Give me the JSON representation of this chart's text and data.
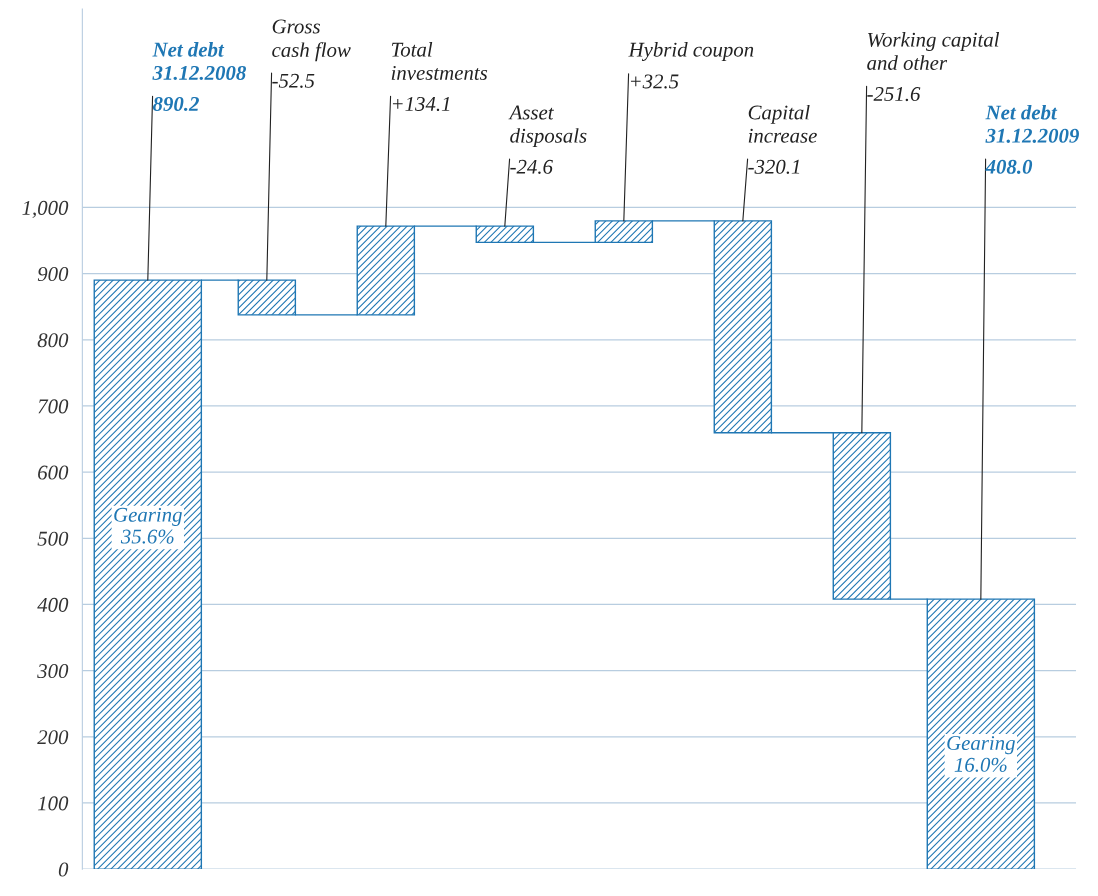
{
  "chart_data": {
    "type": "bar",
    "categories": [
      "Net debt\n31.12.2008",
      "Gross\ncash flow",
      "Total\ninvestments",
      "Asset\ndisposals",
      "Hybrid coupon",
      "Capital\nincrease",
      "Working capital\nand other",
      "Net debt\n31.12.2009"
    ],
    "values": [
      890.2,
      -52.5,
      134.1,
      -24.6,
      32.5,
      -320.1,
      -251.6,
      408.0
    ],
    "base": [
      0,
      890.2,
      837.7,
      971.8,
      947.2,
      979.7,
      659.6,
      0
    ],
    "value_labels": [
      "890.2",
      "-52.5",
      "+134.1",
      "-24.6",
      "+32.5",
      "-320.1",
      "-251.6",
      "408.0"
    ],
    "color": "#1f77b4",
    "ylim": [
      0,
      1300
    ],
    "yticks": [
      0,
      100,
      200,
      300,
      400,
      500,
      600,
      700,
      800,
      900,
      {
        "value": 1000,
        "label": "1,000"
      }
    ],
    "grid": "y",
    "annotations": [
      "Gearing\n35.6%",
      "Gearing\n16.0%"
    ]
  }
}
